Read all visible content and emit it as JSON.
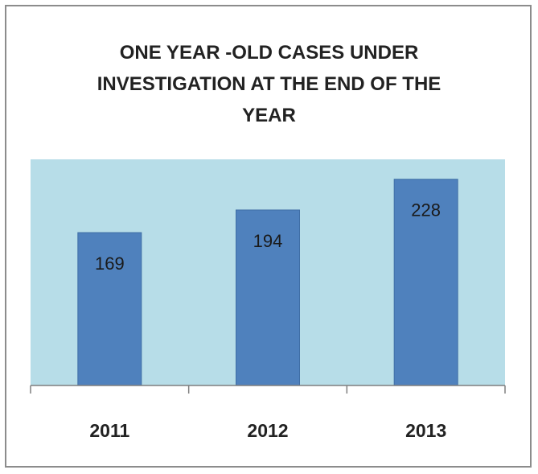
{
  "chart_data": {
    "type": "bar",
    "title_lines": [
      "ONE YEAR -OLD CASES UNDER",
      "INVESTIGATION AT THE END OF THE",
      "YEAR"
    ],
    "categories": [
      "2011",
      "2012",
      "2013"
    ],
    "values": [
      169,
      194,
      228
    ],
    "data_labels": [
      "169",
      "194",
      "228"
    ],
    "ylim": [
      0,
      250
    ],
    "grid": false,
    "legend": "none",
    "colors": {
      "plot_background": "#b7dde8",
      "bar_fill": "#4f81bd",
      "bar_stroke": "#3f6ea5"
    }
  }
}
